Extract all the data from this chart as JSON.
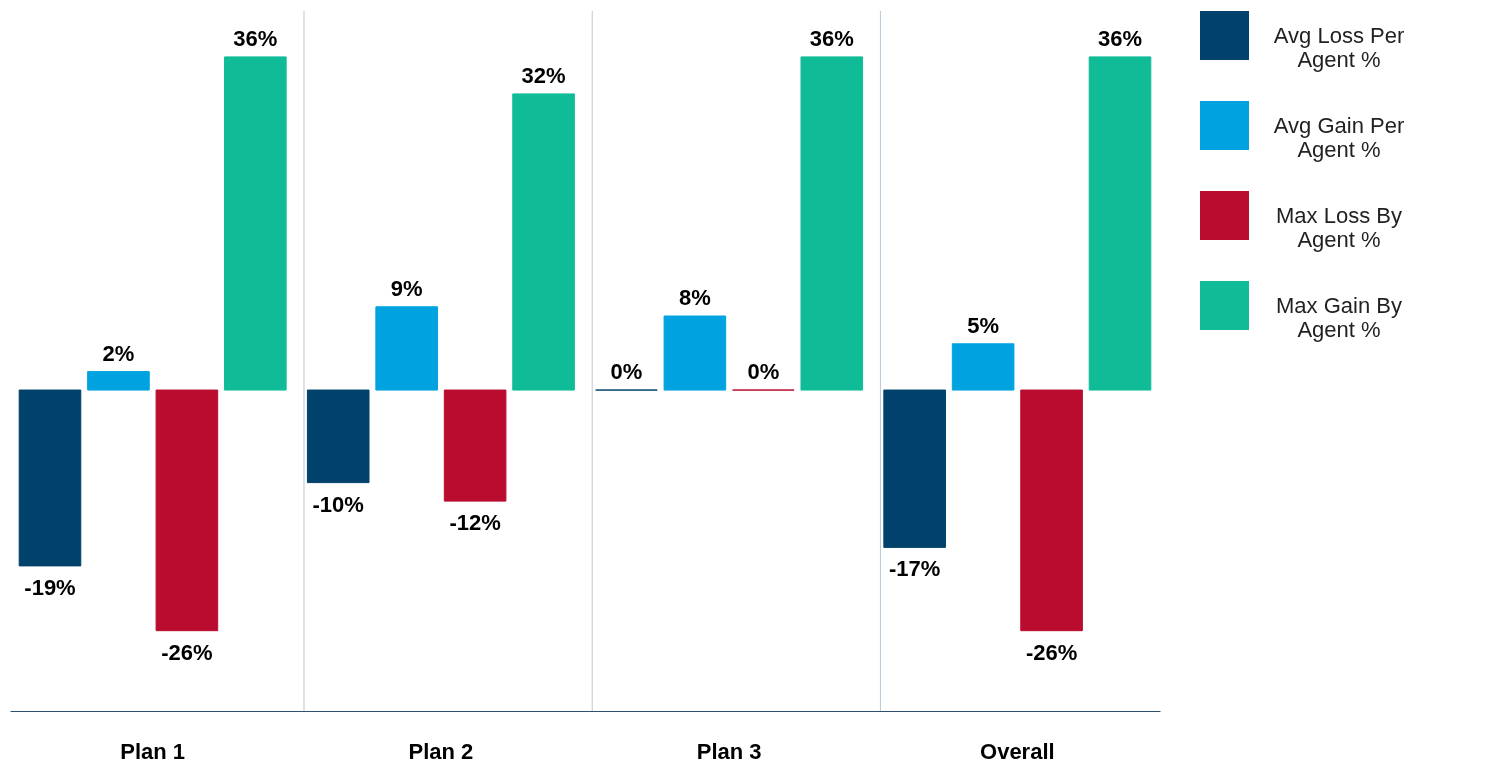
{
  "chart_data": {
    "type": "bar",
    "categories": [
      "Plan 1",
      "Plan 2",
      "Plan 3",
      "Overall"
    ],
    "series": [
      {
        "name": "Avg Loss Per Agent %",
        "color": "#00426b",
        "values": [
          -19,
          -10,
          0,
          -17
        ],
        "value_labels": [
          "-19%",
          "-10%",
          "0%",
          "-17%"
        ]
      },
      {
        "name": "Avg Gain Per Agent %",
        "color": "#00a3e0",
        "values": [
          2,
          9,
          8,
          5
        ],
        "value_labels": [
          "2%",
          "9%",
          "8%",
          "5%"
        ]
      },
      {
        "name": "Max Loss By Agent %",
        "color": "#ba0c2f",
        "values": [
          -26,
          -12,
          0,
          -26
        ],
        "value_labels": [
          "-26%",
          "-12%",
          "0%",
          "-26%"
        ]
      },
      {
        "name": "Max Gain By Agent %",
        "color": "#10bc98",
        "values": [
          36,
          32,
          36,
          36
        ],
        "value_labels": [
          "36%",
          "32%",
          "36%",
          "36%"
        ]
      }
    ],
    "grid": "x",
    "legend": "right"
  }
}
